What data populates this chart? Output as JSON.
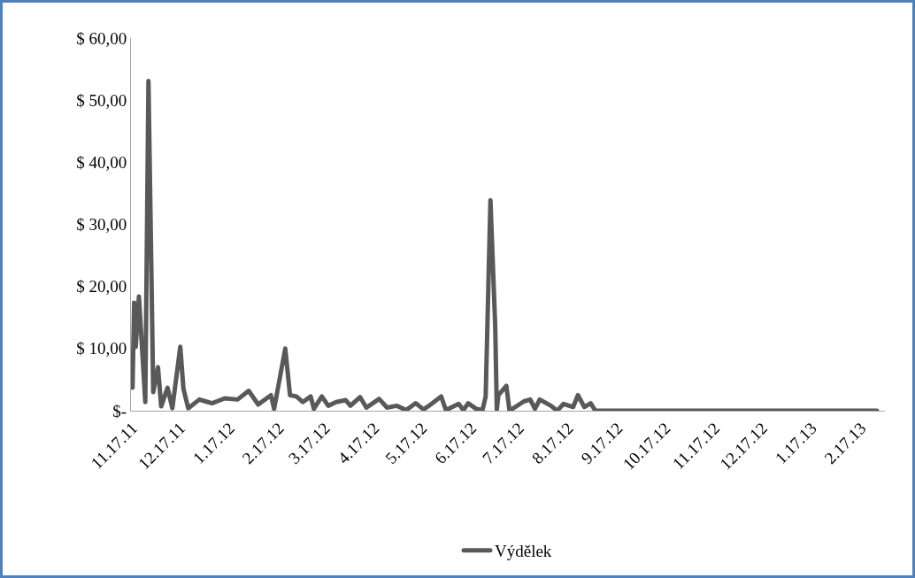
{
  "chart_data": {
    "type": "line",
    "x": [
      "2011-11-17",
      "2011-11-18",
      "2011-11-19",
      "2011-11-21",
      "2011-11-25",
      "2011-11-27",
      "2011-11-30",
      "2011-12-03",
      "2011-12-05",
      "2011-12-09",
      "2011-12-12",
      "2011-12-17",
      "2011-12-19",
      "2011-12-22",
      "2011-12-29",
      "2012-01-02",
      "2012-01-06",
      "2012-01-14",
      "2012-01-22",
      "2012-01-29",
      "2012-02-04",
      "2012-02-12",
      "2012-02-14",
      "2012-02-21",
      "2012-02-24",
      "2012-02-28",
      "2012-03-03",
      "2012-03-08",
      "2012-03-10",
      "2012-03-15",
      "2012-03-19",
      "2012-03-24",
      "2012-03-30",
      "2012-04-02",
      "2012-04-08",
      "2012-04-12",
      "2012-04-16",
      "2012-04-20",
      "2012-04-25",
      "2012-05-01",
      "2012-05-07",
      "2012-05-13",
      "2012-05-18",
      "2012-05-23",
      "2012-05-29",
      "2012-06-01",
      "2012-06-09",
      "2012-06-12",
      "2012-06-15",
      "2012-06-20",
      "2012-06-24",
      "2012-06-26",
      "2012-06-29",
      "2012-07-02",
      "2012-07-03",
      "2012-07-04",
      "2012-07-09",
      "2012-07-11",
      "2012-07-20",
      "2012-07-24",
      "2012-07-27",
      "2012-07-30",
      "2012-08-06",
      "2012-08-10",
      "2012-08-14",
      "2012-08-20",
      "2012-08-23",
      "2012-08-27",
      "2012-08-31",
      "2012-09-03",
      "2013-02-27"
    ],
    "series": [
      {
        "name": "Výdělek",
        "color": "#595959",
        "values": [
          3.7,
          17.4,
          10.3,
          18.4,
          1.4,
          53.1,
          3,
          7,
          0.7,
          3.7,
          0.4,
          10.3,
          3.5,
          0.4,
          1.8,
          1.5,
          1.2,
          2,
          1.8,
          3.2,
          1,
          2.5,
          0.3,
          10,
          2.5,
          2.3,
          1.4,
          2.3,
          0.3,
          2.3,
          0.8,
          1.4,
          1.7,
          0.8,
          2.2,
          0.5,
          1.2,
          1.9,
          0.5,
          0.8,
          0.1,
          1.2,
          0.2,
          1.1,
          2.3,
          0.1,
          1.1,
          0.1,
          1.2,
          0.3,
          0.1,
          2.3,
          33.9,
          13.6,
          0.2,
          2.5,
          4,
          0,
          1.5,
          1.8,
          0.3,
          1.8,
          0.8,
          0,
          1.1,
          0.6,
          2.5,
          0.6,
          1.2,
          0,
          0
        ]
      }
    ],
    "xlim": [
      "2011-11-16",
      "2013-03-04"
    ],
    "xticks": [
      {
        "value": "2011-11-17",
        "label": "11.17.11"
      },
      {
        "value": "2011-12-17",
        "label": "12.17.11"
      },
      {
        "value": "2012-01-17",
        "label": "1.17.12"
      },
      {
        "value": "2012-02-17",
        "label": "2.17.12"
      },
      {
        "value": "2012-03-17",
        "label": "3.17.12"
      },
      {
        "value": "2012-04-17",
        "label": "4.17.12"
      },
      {
        "value": "2012-05-17",
        "label": "5.17.12"
      },
      {
        "value": "2012-06-17",
        "label": "6.17.12"
      },
      {
        "value": "2012-07-17",
        "label": "7.17.12"
      },
      {
        "value": "2012-08-17",
        "label": "8.17.12"
      },
      {
        "value": "2012-09-17",
        "label": "9.17.12"
      },
      {
        "value": "2012-10-17",
        "label": "10.17.12"
      },
      {
        "value": "2012-11-17",
        "label": "11.17.12"
      },
      {
        "value": "2012-12-17",
        "label": "12.17.12"
      },
      {
        "value": "2013-01-17",
        "label": "1.17.13"
      },
      {
        "value": "2013-02-17",
        "label": "2.17.13"
      }
    ],
    "ylim": [
      0,
      60
    ],
    "yticks": [
      {
        "value": 0,
        "label": "$-"
      },
      {
        "value": 10,
        "label": "$ 10,00"
      },
      {
        "value": 20,
        "label": "$ 20,00"
      },
      {
        "value": 30,
        "label": "$ 30,00"
      },
      {
        "value": 40,
        "label": "$ 40,00"
      },
      {
        "value": 50,
        "label": "$ 50,00"
      },
      {
        "value": 60,
        "label": "$ 60,00"
      }
    ],
    "grid": false,
    "legend": "bottom",
    "marker": "none",
    "line_style": "solid"
  }
}
